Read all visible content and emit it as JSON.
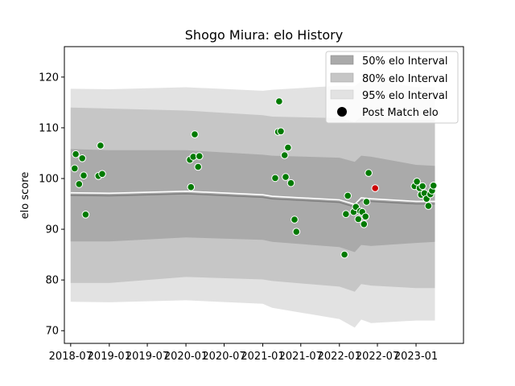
{
  "chart_data": {
    "type": "area",
    "title": "Shogo Miura: elo History",
    "xlabel": "",
    "ylabel": "elo score",
    "xlim": [
      "2018-06-01",
      "2023-08-15"
    ],
    "ylim": [
      67.5,
      126
    ],
    "grid": false,
    "legend_position": "top-right",
    "x_tick_labels": [
      "2018-07",
      "2019-01",
      "2019-07",
      "2020-01",
      "2020-07",
      "2021-01",
      "2021-07",
      "2022-01",
      "2022-07",
      "2023-01"
    ],
    "y_ticks": [
      70,
      80,
      90,
      100,
      110,
      120
    ],
    "legend": [
      "50% elo Interval",
      "80% elo Interval",
      "95% elo Interval",
      "Post Match elo"
    ],
    "colors": {
      "band50": "#aaaaaa",
      "band80": "#c6c6c6",
      "band95": "#e2e2e2",
      "mean_line": "#808080",
      "upper_line": "#ffffff",
      "point": "#007a00",
      "highlight": "#cc0000"
    },
    "bands": [
      {
        "x": "2018-07-01",
        "mean": 96.7,
        "w50": 9.1,
        "w80": 17.3,
        "w95": 21.0
      },
      {
        "x": "2019-01-01",
        "mean": 96.6,
        "w50": 9.0,
        "w80": 17.2,
        "w95": 21.0
      },
      {
        "x": "2020-01-01",
        "mean": 97.0,
        "w50": 8.6,
        "w80": 16.4,
        "w95": 21.0
      },
      {
        "x": "2021-01-01",
        "mean": 96.3,
        "w50": 8.4,
        "w80": 16.2,
        "w95": 21.0
      },
      {
        "x": "2021-02-15",
        "mean": 96.0,
        "w50": 8.5,
        "w80": 16.2,
        "w95": 21.5
      },
      {
        "x": "2022-01-01",
        "mean": 95.3,
        "w50": 8.8,
        "w80": 16.6,
        "w95": 23.0
      },
      {
        "x": "2022-03-15",
        "mean": 94.4,
        "w50": 8.9,
        "w80": 16.7,
        "w95": 23.8
      },
      {
        "x": "2022-04-15",
        "mean": 95.7,
        "w50": 8.8,
        "w80": 16.5,
        "w95": 23.5
      },
      {
        "x": "2022-06-01",
        "mean": 95.5,
        "w50": 8.8,
        "w80": 16.6,
        "w95": 24.0
      },
      {
        "x": "2023-01-01",
        "mean": 95.0,
        "w50": 7.7,
        "w80": 16.6,
        "w95": 23.0
      },
      {
        "x": "2023-04-01",
        "mean": 95.0,
        "w50": 7.5,
        "w80": 16.6,
        "w95": 23.0
      }
    ],
    "points": [
      {
        "x": "2018-07-20",
        "y": 102.0
      },
      {
        "x": "2018-07-25",
        "y": 104.8
      },
      {
        "x": "2018-08-10",
        "y": 98.9
      },
      {
        "x": "2018-08-25",
        "y": 104.0
      },
      {
        "x": "2018-09-01",
        "y": 100.6
      },
      {
        "x": "2018-09-10",
        "y": 92.9
      },
      {
        "x": "2018-11-10",
        "y": 100.5
      },
      {
        "x": "2018-11-20",
        "y": 106.5
      },
      {
        "x": "2018-11-28",
        "y": 100.9
      },
      {
        "x": "2020-01-20",
        "y": 103.7
      },
      {
        "x": "2020-01-25",
        "y": 98.3
      },
      {
        "x": "2020-02-05",
        "y": 104.3
      },
      {
        "x": "2020-02-12",
        "y": 108.7
      },
      {
        "x": "2020-02-28",
        "y": 102.3
      },
      {
        "x": "2020-03-05",
        "y": 104.4
      },
      {
        "x": "2021-03-01",
        "y": 100.1
      },
      {
        "x": "2021-03-15",
        "y": 109.2
      },
      {
        "x": "2021-03-20",
        "y": 115.2
      },
      {
        "x": "2021-03-28",
        "y": 109.3
      },
      {
        "x": "2021-04-15",
        "y": 104.6
      },
      {
        "x": "2021-04-20",
        "y": 100.3
      },
      {
        "x": "2021-05-01",
        "y": 106.1
      },
      {
        "x": "2021-05-15",
        "y": 99.1
      },
      {
        "x": "2021-06-01",
        "y": 91.9
      },
      {
        "x": "2021-06-10",
        "y": 89.5
      },
      {
        "x": "2022-01-25",
        "y": 85.0
      },
      {
        "x": "2022-02-01",
        "y": 93.0
      },
      {
        "x": "2022-02-10",
        "y": 96.6
      },
      {
        "x": "2022-03-10",
        "y": 93.4
      },
      {
        "x": "2022-03-20",
        "y": 94.4
      },
      {
        "x": "2022-04-01",
        "y": 92.0
      },
      {
        "x": "2022-04-10",
        "y": 93.6
      },
      {
        "x": "2022-04-20",
        "y": 93.4
      },
      {
        "x": "2022-04-28",
        "y": 91.0
      },
      {
        "x": "2022-05-05",
        "y": 92.5
      },
      {
        "x": "2022-05-10",
        "y": 95.4
      },
      {
        "x": "2022-05-20",
        "y": 101.1
      },
      {
        "x": "2022-12-25",
        "y": 98.5
      },
      {
        "x": "2023-01-05",
        "y": 99.4
      },
      {
        "x": "2023-01-18",
        "y": 98.1
      },
      {
        "x": "2023-01-25",
        "y": 96.8
      },
      {
        "x": "2023-02-01",
        "y": 98.5
      },
      {
        "x": "2023-02-10",
        "y": 97.1
      },
      {
        "x": "2023-02-20",
        "y": 96.0
      },
      {
        "x": "2023-03-01",
        "y": 94.6
      },
      {
        "x": "2023-03-10",
        "y": 96.9
      },
      {
        "x": "2023-03-18",
        "y": 97.6
      },
      {
        "x": "2023-03-25",
        "y": 98.6
      }
    ],
    "highlight_point": {
      "x": "2022-06-20",
      "y": 98.1
    }
  }
}
